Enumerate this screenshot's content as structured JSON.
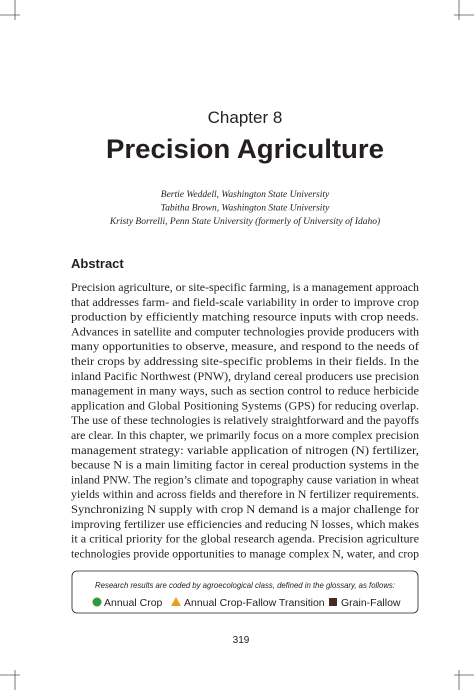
{
  "header": {
    "chapter": "Chapter 8",
    "title": "Precision Agriculture"
  },
  "authors": [
    "Bertie Weddell, Washington State University",
    "Tabitha Brown, Washington State University",
    "Kristy Borrelli, Penn State University (formerly of University of Idaho)"
  ],
  "abstract": {
    "heading": "Abstract",
    "lines": [
      "Precision agriculture, or site-specific farming, is a management approach",
      "that addresses farm- and field-scale variability in order to improve crop",
      "production by efficiently matching resource inputs with crop needs.",
      "Advances in satellite and computer technologies provide producers with",
      "many opportunities to observe, measure, and respond to the needs of",
      "their crops by addressing site-specific problems in their fields. In the",
      "inland Pacific Northwest (PNW), dryland cereal producers use precision",
      "management in many ways, such as section control to reduce herbicide",
      "application and Global Positioning Systems (GPS) for reducing overlap.",
      "The use of these technologies is relatively straightforward and the payoffs",
      "are clear. In this chapter, we primarily focus on a more complex precision",
      "management strategy: variable application of nitrogen (N) fertilizer,",
      "because N is a main limiting factor in cereal production systems in the",
      "inland PNW. The region’s climate and topography cause variation in wheat",
      "yields within and across fields and therefore in N fertilizer requirements.",
      "Synchronizing N supply with crop N demand is a major challenge for",
      "improving fertilizer use efficiencies and reducing N losses, which makes",
      "it a critical priority for the global research agenda. Precision agriculture",
      "technologies provide opportunities to manage complex N, water, and crop"
    ]
  },
  "legend": {
    "caption": "Research results are coded by agroecological class, defined in the glossary, as follows:",
    "items": [
      "Annual Crop",
      "Annual Crop-Fallow Transition",
      "Grain-Fallow"
    ]
  },
  "page_number": "319"
}
